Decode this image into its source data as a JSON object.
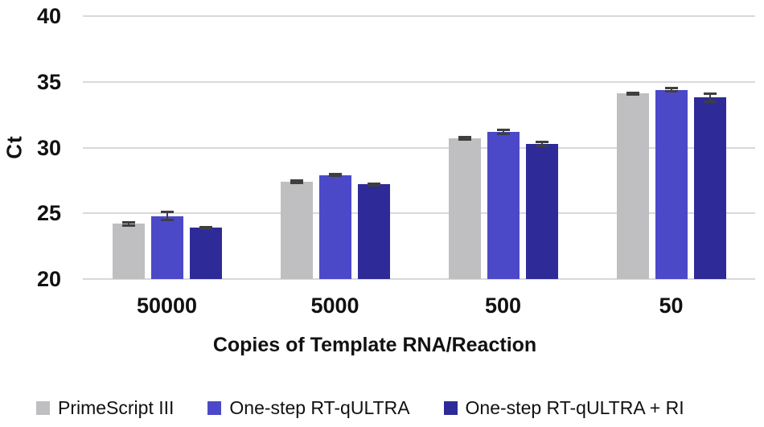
{
  "chart_data": {
    "type": "bar",
    "title": "",
    "ylabel": "Ct",
    "xlabel": "Copies of Template RNA/Reaction",
    "categories": [
      "50000",
      "5000",
      "500",
      "50"
    ],
    "series": [
      {
        "name": "PrimeScript III",
        "color": "#bfbfc1",
        "values": [
          24.2,
          27.4,
          30.7,
          34.1
        ],
        "errors": [
          0.15,
          0.12,
          0.12,
          0.12
        ]
      },
      {
        "name": "One-step RT-qULTRA",
        "color": "#4b49c8",
        "values": [
          24.8,
          27.9,
          31.2,
          34.4
        ],
        "errors": [
          0.35,
          0.1,
          0.2,
          0.15
        ]
      },
      {
        "name": "One-step RT-qULTRA + RI",
        "color": "#2e2b98",
        "values": [
          23.9,
          27.2,
          30.3,
          33.8
        ],
        "errors": [
          0.08,
          0.08,
          0.18,
          0.35
        ]
      }
    ],
    "ylim": [
      20,
      40
    ],
    "yticks": [
      20,
      25,
      30,
      35,
      40
    ],
    "grid": true,
    "legend_position": "bottom",
    "colors": {
      "gridline": "#d9d9d9",
      "error_bar": "#3f3f3f",
      "text": "#111111",
      "background": "#ffffff"
    }
  }
}
